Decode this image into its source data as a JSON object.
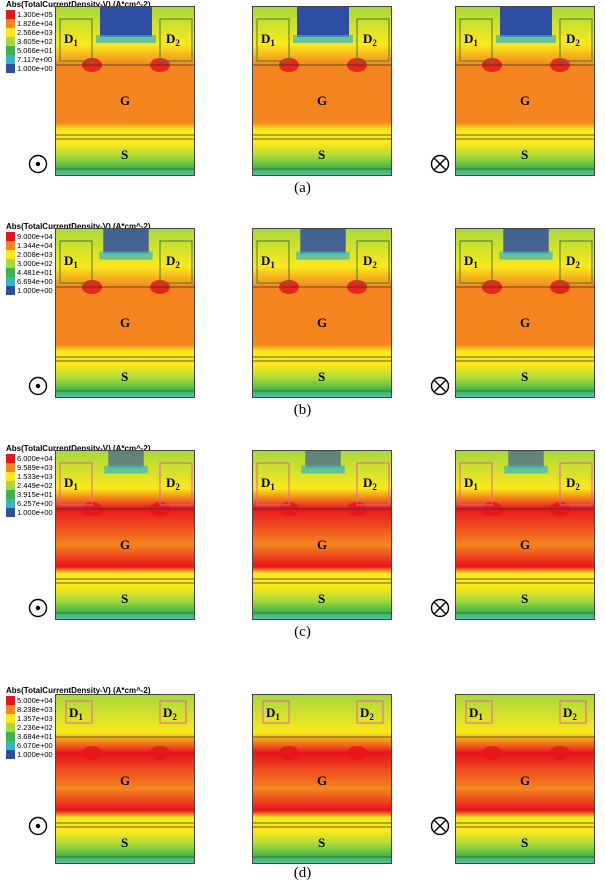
{
  "colors": {
    "c1": "#e8141c",
    "c2": "#f5861f",
    "c3": "#fbe91c",
    "c4": "#a8d93a",
    "c5": "#3db34a",
    "c6": "#35b5c2",
    "c7": "#2e4ea3",
    "substrate": "#5cc6c9",
    "border": "#444444",
    "box": "#e15fa8"
  },
  "symbols": {
    "out": "current-out-of-page-icon",
    "in": "current-into-page-icon"
  },
  "region_labels": {
    "d1": "D",
    "d2": "D",
    "sub1": "1",
    "sub2": "2",
    "gate": "G",
    "source": "S"
  },
  "panels": [
    {
      "caption": "(a)",
      "legend_title": "Abs(TotalCurrentDensity-V) (A*cm^-2)",
      "legend": [
        "1.300e+05",
        "1.826e+04",
        "2.566e+03",
        "3.605e+02",
        "5.066e+01",
        "7.117e+00",
        "1.000e+00"
      ]
    },
    {
      "caption": "(b)",
      "legend_title": "Abs(TotalCurrentDensity-V) (A*cm^-2)",
      "legend": [
        "9.000e+04",
        "1.344e+04",
        "2.008e+03",
        "3.000e+02",
        "4.481e+01",
        "6.694e+00",
        "1.000e+00"
      ]
    },
    {
      "caption": "(c)",
      "legend_title": "Abs(TotalCurrentDensity-V) (A*cm^-2)",
      "legend": [
        "6.000e+04",
        "9.589e+03",
        "1.533e+03",
        "2.449e+02",
        "3.915e+01",
        "6.257e+00",
        "1.000e+00"
      ]
    },
    {
      "caption": "(d)",
      "legend_title": "Abs(TotalCurrentDensity-V) (A*cm^-2)",
      "legend": [
        "5.000e+04",
        "8.238e+03",
        "1.357e+03",
        "2.236e+02",
        "3.684e+01",
        "6.070e+00",
        "1.000e+00"
      ]
    }
  ]
}
